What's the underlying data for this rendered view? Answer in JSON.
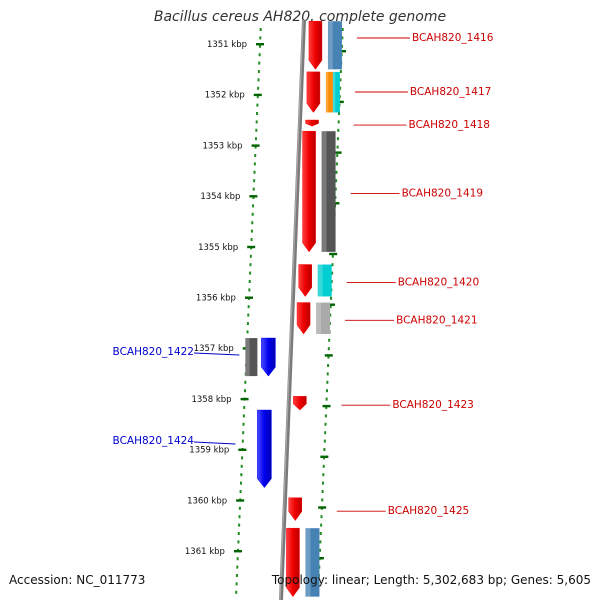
{
  "title": "Bacillus cereus AH820, complete genome",
  "footer": {
    "accession": "Accession: NC_011773",
    "summary": "Topology: linear; Length: 5,302,683 bp; Genes: 5,605"
  },
  "ruler": {
    "unit": "kbp",
    "ticks": [
      {
        "kbp": 1351,
        "label": "1351 kbp"
      },
      {
        "kbp": 1352,
        "label": "1352 kbp"
      },
      {
        "kbp": 1353,
        "label": "1353 kbp"
      },
      {
        "kbp": 1354,
        "label": "1354 kbp"
      },
      {
        "kbp": 1355,
        "label": "1355 kbp"
      },
      {
        "kbp": 1356,
        "label": "1356 kbp"
      },
      {
        "kbp": 1357,
        "label": "1357 kbp"
      },
      {
        "kbp": 1358,
        "label": "1358 kbp"
      },
      {
        "kbp": 1359,
        "label": "1359 kbp"
      },
      {
        "kbp": 1360,
        "label": "1360 kbp"
      },
      {
        "kbp": 1361,
        "label": "1361 kbp"
      }
    ]
  },
  "genes": [
    {
      "label": "BCAH820_1416",
      "strand": "+",
      "start_kbp": 1350.55,
      "end_kbp": 1351.5,
      "side": "right",
      "gene_color": "#ff0000",
      "cog_color": "#4682b4"
    },
    {
      "label": "BCAH820_1417",
      "strand": "+",
      "start_kbp": 1351.55,
      "end_kbp": 1352.35,
      "side": "right",
      "gene_color": "#ff0000",
      "cog_color": "#ff8c00",
      "cog_color2": "#00ced1"
    },
    {
      "label": "BCAH820_1418",
      "strand": "+",
      "start_kbp": 1352.5,
      "end_kbp": 1352.62,
      "side": "right",
      "gene_color": "#ff0000"
    },
    {
      "label": "BCAH820_1419",
      "strand": "+",
      "start_kbp": 1352.72,
      "end_kbp": 1355.1,
      "side": "right",
      "gene_color": "#ff0000",
      "cog_color": "#555555"
    },
    {
      "label": "BCAH820_1420",
      "strand": "+",
      "start_kbp": 1355.35,
      "end_kbp": 1355.98,
      "side": "right",
      "gene_color": "#ff0000",
      "cog_color": "#00ced1"
    },
    {
      "label": "BCAH820_1421",
      "strand": "+",
      "start_kbp": 1356.1,
      "end_kbp": 1356.72,
      "side": "right",
      "gene_color": "#ff0000",
      "cog_color": "#aaaaaa"
    },
    {
      "label": "BCAH820_1422",
      "strand": "+",
      "start_kbp": 1356.8,
      "end_kbp": 1357.55,
      "side": "left",
      "gene_color": "#0000ff",
      "cog_color": "#555555"
    },
    {
      "label": "BCAH820_1423",
      "strand": "+",
      "start_kbp": 1357.95,
      "end_kbp": 1358.22,
      "side": "right",
      "gene_color": "#ff0000"
    },
    {
      "label": "BCAH820_1424",
      "strand": "+",
      "start_kbp": 1358.22,
      "end_kbp": 1359.75,
      "side": "left",
      "gene_color": "#0000ff"
    },
    {
      "label": "BCAH820_1425",
      "strand": "+",
      "start_kbp": 1359.95,
      "end_kbp": 1360.4,
      "side": "right",
      "gene_color": "#ff0000"
    },
    {
      "label": "",
      "strand": "+",
      "start_kbp": 1360.55,
      "end_kbp": 1361.9,
      "side": "right",
      "gene_color": "#ff0000",
      "cog_color": "#4682b4"
    }
  ],
  "colors": {
    "ruler_tick": "#006400",
    "ruler_dot": "#228b22",
    "backbone": "#7a7a7a",
    "label_forward": "#cc0000",
    "label_reverse": "#0000cc"
  }
}
